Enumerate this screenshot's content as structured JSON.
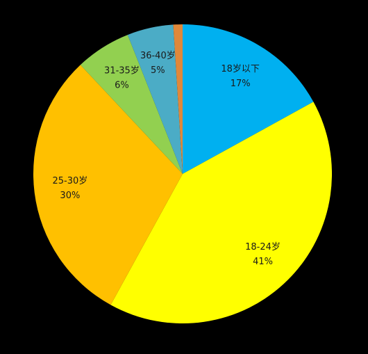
{
  "chart_data": {
    "type": "pie",
    "categories": [
      "18岁以下",
      "18-24岁",
      "25-30岁",
      "31-35岁",
      "36-40岁",
      null
    ],
    "values": [
      17,
      41,
      30,
      6,
      5,
      1
    ],
    "value_labels": [
      "17%",
      "41%",
      "30%",
      "6%",
      "5%",
      null
    ],
    "colors": [
      "#00b0f0",
      "#ffff00",
      "#ffc000",
      "#92d050",
      "#4bacc6",
      "#e0883a"
    ]
  }
}
